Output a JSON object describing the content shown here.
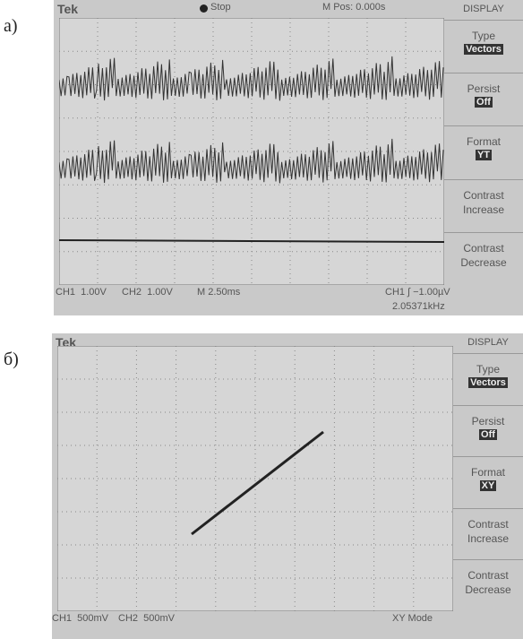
{
  "panels": [
    {
      "label": "а)",
      "header": {
        "brand": "Tek",
        "status": "Stop",
        "position": "M Pos: 0.000s"
      },
      "menu": {
        "title": "DISPLAY",
        "items": [
          {
            "name": "Type",
            "value": "Vectors"
          },
          {
            "name": "Persist",
            "value": "Off"
          },
          {
            "name": "Format",
            "value": "YT"
          },
          {
            "name": "Contrast",
            "value": "Increase"
          },
          {
            "name": "Contrast",
            "value": "Decrease"
          }
        ]
      },
      "footer": [
        "CH1  1.00V",
        "CH2  1.00V",
        "M 2.50ms",
        "CH1 ∫ −1.00µV",
        "2.05371kHz"
      ]
    },
    {
      "label": "б)",
      "header": {
        "brand": "Tek"
      },
      "menu": {
        "title": "DISPLAY",
        "items": [
          {
            "name": "Type",
            "value": "Vectors"
          },
          {
            "name": "Persist",
            "value": "Off"
          },
          {
            "name": "Format",
            "value": "XY"
          },
          {
            "name": "Contrast",
            "value": "Increase"
          },
          {
            "name": "Contrast",
            "value": "Decrease"
          }
        ]
      },
      "footer": [
        "CH1  500mV",
        "CH2  500mV",
        "XY Mode"
      ]
    }
  ]
}
